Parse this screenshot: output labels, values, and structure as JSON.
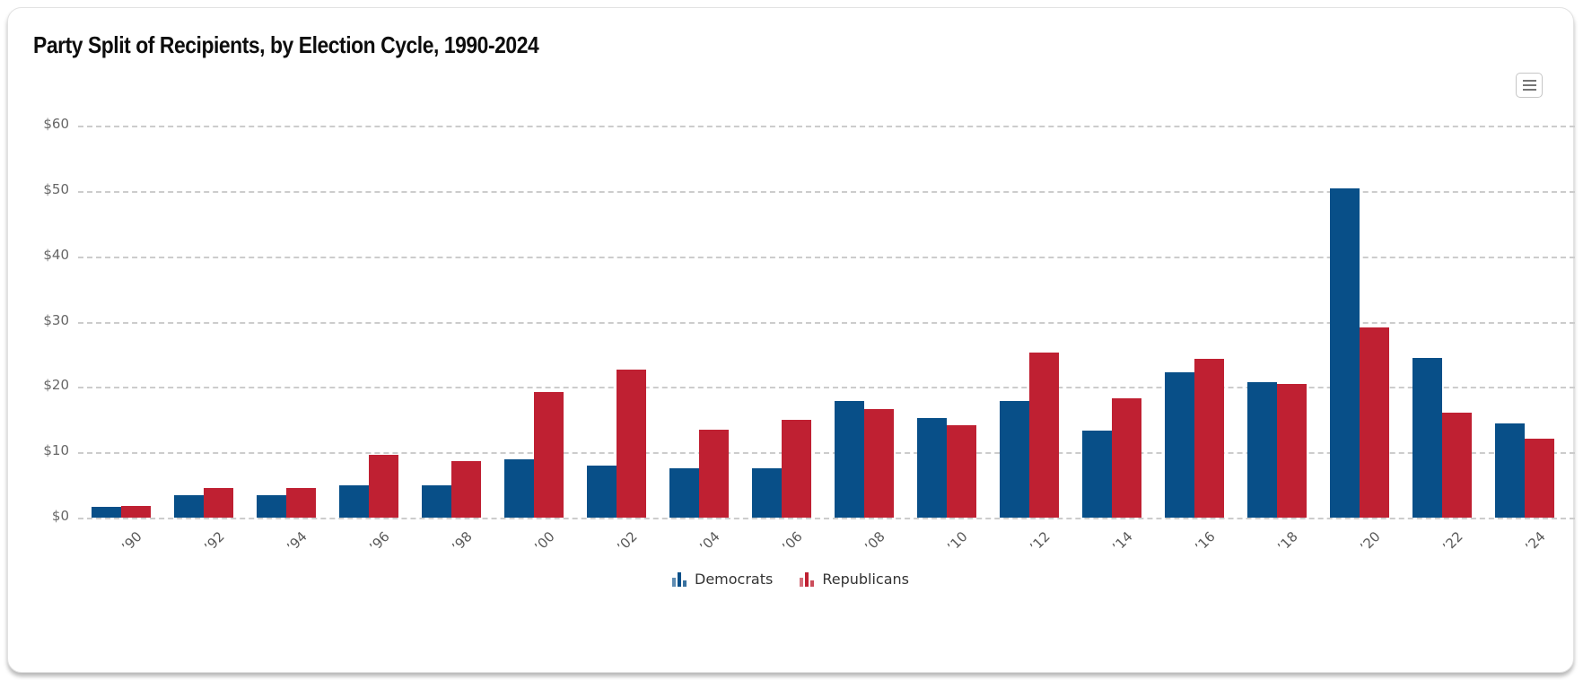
{
  "chart": {
    "title": "Party Split of Recipients, by Election Cycle, 1990-2024",
    "export_menu_icon": "hamburger-menu-icon",
    "colors": {
      "democrats": "#084f88",
      "republicans": "#bf2032",
      "gridline": "#cccccc",
      "axis_label": "#666666"
    }
  },
  "chart_data": {
    "type": "bar",
    "title": "Party Split of Recipients, by Election Cycle, 1990-2024",
    "categories": [
      "’90",
      "’92",
      "’94",
      "’96",
      "’98",
      "’00",
      "’02",
      "’04",
      "’06",
      "’08",
      "’10",
      "’12",
      "’14",
      "’16",
      "’18",
      "’20",
      "’22",
      "’24"
    ],
    "series": [
      {
        "name": "Democrats",
        "color": "#084f88",
        "values": [
          1.6,
          3.4,
          3.4,
          4.9,
          4.9,
          8.9,
          8.0,
          7.6,
          7.6,
          17.9,
          15.3,
          17.9,
          13.3,
          22.3,
          20.8,
          50.4,
          24.5,
          14.4
        ]
      },
      {
        "name": "Republicans",
        "color": "#bf2032",
        "values": [
          1.8,
          4.5,
          4.5,
          9.6,
          8.7,
          19.2,
          22.7,
          13.5,
          14.9,
          16.6,
          14.2,
          25.2,
          18.2,
          24.3,
          20.4,
          29.1,
          16.1,
          12.1
        ]
      }
    ],
    "xlabel": "",
    "ylabel": "",
    "ytick_labels": [
      "$0",
      "$10",
      "$20",
      "$30",
      "$40",
      "$50",
      "$60"
    ],
    "ylim": [
      0,
      60
    ],
    "grid": "horizontal-dashed",
    "legend_position": "bottom-center",
    "legend": [
      "Democrats",
      "Republicans"
    ]
  }
}
